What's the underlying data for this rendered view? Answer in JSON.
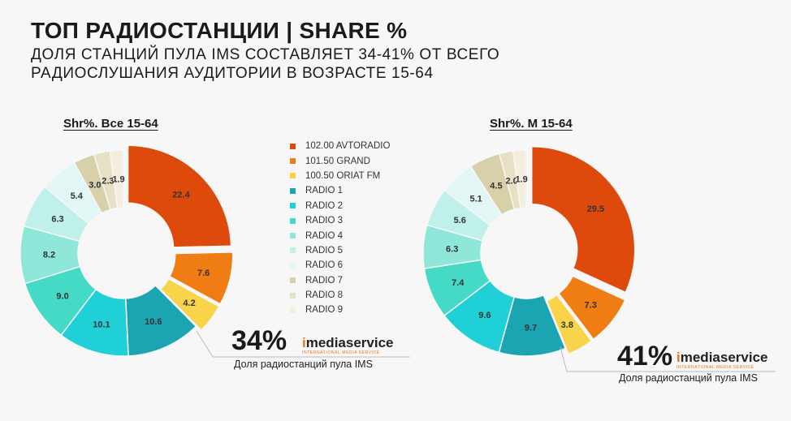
{
  "header": {
    "title": "ТОП РАДИОСТАНЦИИ | SHARE %",
    "subtitle": "ДОЛЯ СТАНЦИЙ ПУЛА IMS СОСТАВЛЯЕТ 34-41% ОТ ВСЕГО РАДИОСЛУШАНИЯ АУДИТОРИИ В ВОЗРАСТЕ 15-64"
  },
  "legend_items": [
    {
      "label": "102.00 AVTORADIO",
      "color": "#dd4a0c"
    },
    {
      "label": "101.50 GRAND",
      "color": "#f07c14"
    },
    {
      "label": "100.50 ORIAT FM",
      "color": "#f9d44a"
    },
    {
      "label": "RADIO 1",
      "color": "#1ba5b3"
    },
    {
      "label": "RADIO 2",
      "color": "#1fd0d6"
    },
    {
      "label": "RADIO 3",
      "color": "#45dac6"
    },
    {
      "label": "RADIO 4",
      "color": "#8ee7d8"
    },
    {
      "label": "RADIO 5",
      "color": "#bff0ea"
    },
    {
      "label": "RADIO 6",
      "color": "#e2f7f5"
    },
    {
      "label": "RADIO 7",
      "color": "#d8d0a8"
    },
    {
      "label": "RADIO 8",
      "color": "#e6e0c4"
    },
    {
      "label": "RADIO 9",
      "color": "#f3efdf"
    }
  ],
  "chart_data": [
    {
      "type": "pie",
      "title": "Shr%. Все 15-64",
      "categories": [
        "102.00 AVTORADIO",
        "101.50 GRAND",
        "100.50 ORIAT FM",
        "RADIO 1",
        "RADIO 2",
        "RADIO 3",
        "RADIO 4",
        "RADIO 5",
        "RADIO 6",
        "RADIO 7",
        "RADIO 8",
        "RADIO 9"
      ],
      "values": [
        22.4,
        7.6,
        4.2,
        10.6,
        10.1,
        9.0,
        8.2,
        6.3,
        5.4,
        3.0,
        2.3,
        1.9
      ],
      "labels": [
        "22.4",
        "7.6",
        "4.2",
        "10.6",
        "10.1",
        "9.0",
        "8.2",
        "6.3",
        "5.4",
        "3.0",
        "2.3",
        "1.9"
      ],
      "pool_share": "34%",
      "pool_caption": "Доля радиостанций пула IMS"
    },
    {
      "type": "pie",
      "title": "Shr%. М 15-64",
      "categories": [
        "102.00 AVTORADIO",
        "101.50 GRAND",
        "100.50 ORIAT FM",
        "RADIO 1",
        "RADIO 2",
        "RADIO 3",
        "RADIO 4",
        "RADIO 5",
        "RADIO 6",
        "RADIO 7",
        "RADIO 8",
        "RADIO 9"
      ],
      "values": [
        29.5,
        7.3,
        3.8,
        9.7,
        9.6,
        7.4,
        6.3,
        5.6,
        5.1,
        4.5,
        2.0,
        1.9
      ],
      "labels": [
        "29.5",
        "7.3",
        "3.8",
        "9.7",
        "9.6",
        "7.4",
        "6.3",
        "5.6",
        "5.1",
        "4.5",
        "2.0",
        "1.9"
      ],
      "pool_share": "41%",
      "pool_caption": "Доля радиостанций пула IMS"
    }
  ],
  "logo": {
    "accent": "i",
    "name": "mediaservice",
    "tagline": "INTERNATIONAL MEDIA SERVICE"
  }
}
